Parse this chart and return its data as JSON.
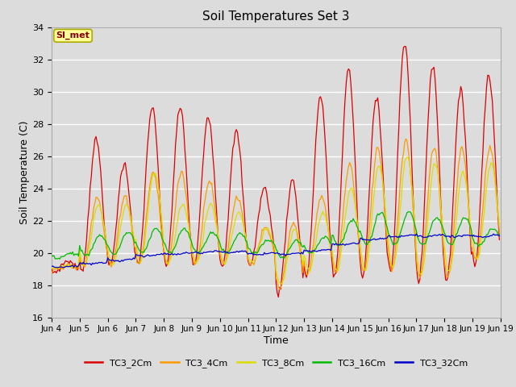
{
  "title": "Soil Temperatures Set 3",
  "xlabel": "Time",
  "ylabel": "Soil Temperature (C)",
  "ylim": [
    16,
    34
  ],
  "bg_color": "#dcdcdc",
  "grid_color": "white",
  "annotation_text": "SI_met",
  "annotation_bg": "#ffff99",
  "annotation_border": "#aaaa00",
  "series": [
    "TC3_2Cm",
    "TC3_4Cm",
    "TC3_8Cm",
    "TC3_16Cm",
    "TC3_32Cm"
  ],
  "colors": [
    "#dd0000",
    "#ff9900",
    "#dddd00",
    "#00bb00",
    "#0000cc"
  ],
  "tick_labels": [
    "Jun 4",
    "Jun 5",
    "Jun 6",
    "Jun 7",
    "Jun 8",
    "Jun 9",
    "Jun 10",
    "Jun 11",
    "Jun 12",
    "Jun 13",
    "Jun 14",
    "Jun 15",
    "Jun 16",
    "Jun 17",
    "Jun 18",
    "Jun 19"
  ],
  "n_days": 16,
  "n_points_per_day": 24,
  "peaks_2cm": [
    19.5,
    27.0,
    25.5,
    29.0,
    29.0,
    28.5,
    27.5,
    24.0,
    24.5,
    29.7,
    31.4,
    29.7,
    33.0,
    31.6,
    30.0,
    31.0
  ],
  "peaks_4cm": [
    19.2,
    23.5,
    23.5,
    25.0,
    25.0,
    24.5,
    23.5,
    21.5,
    21.8,
    23.5,
    25.5,
    26.5,
    27.0,
    26.5,
    26.5,
    26.5
  ],
  "peaks_8cm": [
    19.2,
    23.0,
    23.0,
    25.0,
    23.0,
    23.0,
    22.5,
    21.5,
    21.5,
    22.5,
    24.0,
    25.5,
    26.0,
    25.5,
    25.0,
    25.5
  ],
  "peaks_16cm": [
    20.0,
    21.1,
    21.3,
    21.5,
    21.5,
    21.3,
    21.2,
    20.8,
    20.8,
    21.0,
    22.0,
    22.5,
    22.5,
    22.2,
    22.2,
    21.5
  ],
  "peaks_32cm": [
    19.2,
    19.4,
    19.6,
    19.9,
    20.0,
    20.1,
    20.1,
    20.0,
    20.0,
    20.2,
    20.6,
    20.9,
    21.1,
    21.1,
    21.1,
    21.1
  ],
  "night_2cm": [
    18.8,
    19.0,
    19.2,
    19.2,
    19.2,
    19.2,
    19.2,
    19.3,
    17.5,
    18.5,
    18.5,
    18.5,
    18.8,
    18.2,
    18.3,
    19.2
  ],
  "night_4cm": [
    19.0,
    19.1,
    19.2,
    19.3,
    19.3,
    19.3,
    19.3,
    19.3,
    17.8,
    18.8,
    18.8,
    18.8,
    19.0,
    18.5,
    18.5,
    19.5
  ],
  "night_8cm": [
    19.1,
    19.2,
    19.3,
    19.4,
    19.4,
    19.4,
    19.4,
    19.4,
    18.0,
    18.9,
    18.9,
    18.9,
    19.1,
    18.7,
    18.8,
    19.6
  ],
  "night_16cm": [
    19.7,
    19.8,
    19.9,
    20.0,
    20.0,
    20.0,
    20.0,
    20.0,
    19.7,
    20.0,
    20.5,
    20.5,
    20.5,
    20.5,
    20.5,
    20.5
  ],
  "night_32cm": [
    19.1,
    19.3,
    19.5,
    19.8,
    19.9,
    20.0,
    20.0,
    19.9,
    19.9,
    20.1,
    20.5,
    20.8,
    21.0,
    21.0,
    21.0,
    21.0
  ]
}
